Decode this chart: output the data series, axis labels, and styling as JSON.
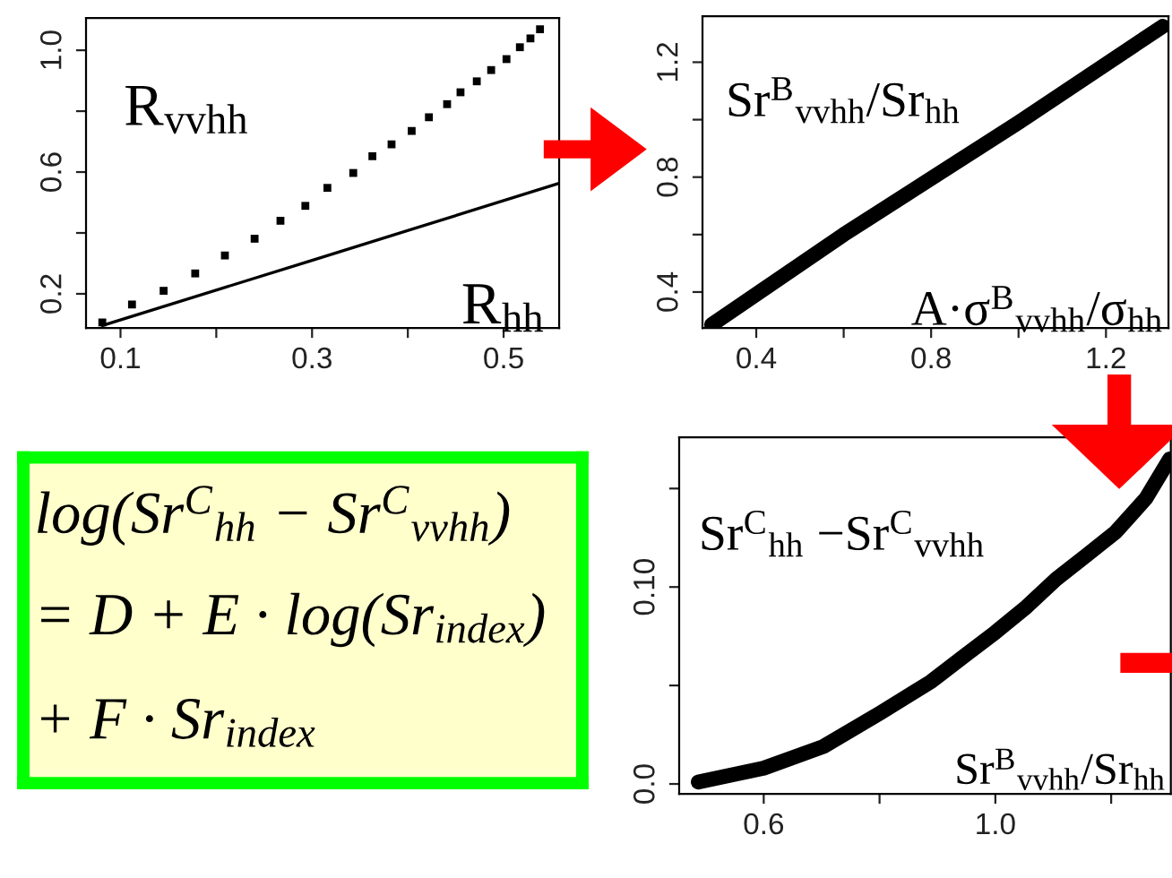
{
  "chart_data": [
    {
      "type": "scatter",
      "xlim": [
        0.064,
        0.558
      ],
      "ylim": [
        0.088,
        1.106
      ],
      "xticks": [
        0.1,
        {
          "value": 0.2,
          "label": null
        },
        0.3,
        {
          "value": 0.4,
          "label": null
        },
        0.5
      ],
      "yticks": [
        0.2,
        {
          "value": 0.4,
          "label": null
        },
        0.6,
        {
          "value": 0.8,
          "label": null
        },
        {
          "value": 1,
          "label": "1.0"
        }
      ],
      "series": [
        {
          "type": "scatter",
          "color": "#000000",
          "marker": "square",
          "x": [
            0.081,
            0.112,
            0.145,
            0.178,
            0.209,
            0.24,
            0.267,
            0.293,
            0.316,
            0.343,
            0.363,
            0.383,
            0.404,
            0.422,
            0.441,
            0.455,
            0.472,
            0.487,
            0.503,
            0.517,
            0.528,
            0.538
          ],
          "values": [
            0.106,
            0.165,
            0.21,
            0.267,
            0.326,
            0.381,
            0.44,
            0.489,
            0.548,
            0.597,
            0.652,
            0.691,
            0.735,
            0.78,
            0.823,
            0.862,
            0.898,
            0.935,
            0.971,
            1.01,
            1.039,
            1.069
          ]
        },
        {
          "type": "line",
          "color": "#000000",
          "x": [
            0.081,
            0.3,
            0.557
          ],
          "values": [
            0.096,
            0.31,
            0.562
          ]
        }
      ],
      "annotations": [
        "R$_{vvhh}$",
        "R$_{hh}$"
      ]
    },
    {
      "type": "line",
      "xlim": [
        0.277,
        1.343
      ],
      "ylim": [
        0.275,
        1.36
      ],
      "xticks": [
        0.4,
        {
          "value": 0.6,
          "label": null
        },
        0.8,
        {
          "value": 1.0,
          "label": null
        },
        1.2
      ],
      "yticks": [
        0.4,
        {
          "value": 0.6,
          "label": null
        },
        0.8,
        {
          "value": 1.0,
          "label": null
        },
        1.2
      ],
      "series": [
        {
          "type": "line",
          "color": "#000000",
          "x": [
            0.298,
            0.6,
            0.8,
            1.0,
            1.33
          ],
          "values": [
            0.286,
            0.6,
            0.795,
            0.99,
            1.325
          ]
        }
      ],
      "annotations": [
        "Sr$^{B}$$_{vvhh}$/Sr$_{hh}$",
        "A·σ$^{B}$$_{vvhh}$/σ$_{hh}$"
      ]
    },
    {
      "type": "line",
      "xlim": [
        0.454,
        1.303
      ],
      "ylim": [
        -0.005,
        0.176
      ],
      "xticks": [
        0.6,
        {
          "value": 0.8,
          "label": null
        },
        {
          "value": 1,
          "label": "1.0"
        },
        {
          "value": 1.2,
          "label": null
        }
      ],
      "yticks": [
        {
          "value": 0,
          "label": "0.0"
        },
        {
          "value": 0.05,
          "label": null
        },
        {
          "value": 0.1,
          "label": "0.10"
        },
        {
          "value": 0.15,
          "label": null
        }
      ],
      "series": [
        {
          "type": "line",
          "color": "#000000",
          "x": [
            0.487,
            0.6,
            0.703,
            0.801,
            0.889,
            0.951,
            1.0,
            1.054,
            1.105,
            1.157,
            1.208,
            1.26,
            1.301
          ],
          "values": [
            0.001,
            0.008,
            0.019,
            0.036,
            0.052,
            0.066,
            0.077,
            0.09,
            0.104,
            0.116,
            0.128,
            0.145,
            0.165
          ]
        }
      ],
      "annotations": [
        "Sr$^{C}$$_{hh}$ −Sr$^{C}$$_{vvhh}$",
        "Sr$^{B}$$_{vvhh}$/Sr$_{hh}$"
      ]
    },
    {
      "type": "other",
      "annotations": [
        "log(Sr$^{C}$$_{hh}$ − Sr$^{C}$$_{vvhh}$)",
        "= D + E · log(Sr$_{index}$)",
        "+ F · Sr$_{index}$"
      ]
    }
  ]
}
